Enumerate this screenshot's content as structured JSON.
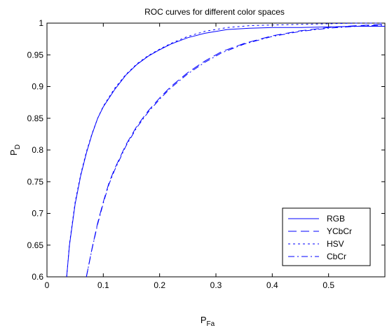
{
  "chart_data": {
    "type": "line",
    "title": "ROC curves for different color spaces",
    "xlabel": "P",
    "xlabel_sub": "Fa",
    "ylabel": "P",
    "ylabel_sub": "D",
    "xlim": [
      0,
      0.6
    ],
    "ylim": [
      0.6,
      1
    ],
    "xticks": [
      0,
      0.1,
      0.2,
      0.3,
      0.4,
      0.5
    ],
    "yticks": [
      0.6,
      0.65,
      0.7,
      0.75,
      0.8,
      0.85,
      0.9,
      0.95,
      1
    ],
    "xtick_labels": [
      "0",
      "0.1",
      "0.2",
      "0.3",
      "0.4",
      "0.5"
    ],
    "ytick_labels": [
      "0.6",
      "0.65",
      "0.7",
      "0.75",
      "0.8",
      "0.85",
      "0.9",
      "0.95",
      "1"
    ],
    "grid": false,
    "legend_position": "bottom-right",
    "line_color": "#0000ff",
    "series": [
      {
        "name": "RGB",
        "style": "solid",
        "x": [
          0.035,
          0.04,
          0.05,
          0.06,
          0.07,
          0.08,
          0.09,
          0.1,
          0.12,
          0.14,
          0.16,
          0.18,
          0.2,
          0.22,
          0.25,
          0.28,
          0.32,
          0.36,
          0.4,
          0.45,
          0.5,
          0.55,
          0.6
        ],
        "y": [
          0.6,
          0.65,
          0.715,
          0.76,
          0.795,
          0.825,
          0.85,
          0.868,
          0.895,
          0.918,
          0.935,
          0.948,
          0.958,
          0.967,
          0.977,
          0.984,
          0.99,
          0.992,
          0.993,
          0.993,
          0.994,
          0.995,
          0.995
        ]
      },
      {
        "name": "YCbCr",
        "style": "dashed",
        "x": [
          0.07,
          0.08,
          0.09,
          0.1,
          0.11,
          0.12,
          0.14,
          0.16,
          0.18,
          0.2,
          0.22,
          0.25,
          0.28,
          0.31,
          0.35,
          0.4,
          0.45,
          0.5,
          0.55,
          0.6
        ],
        "y": [
          0.6,
          0.645,
          0.685,
          0.718,
          0.748,
          0.77,
          0.808,
          0.838,
          0.862,
          0.882,
          0.9,
          0.922,
          0.94,
          0.955,
          0.968,
          0.98,
          0.988,
          0.993,
          0.996,
          0.998
        ]
      },
      {
        "name": "HSV",
        "style": "dotted",
        "x": [
          0.035,
          0.04,
          0.05,
          0.06,
          0.07,
          0.08,
          0.09,
          0.1,
          0.12,
          0.14,
          0.16,
          0.18,
          0.2,
          0.22,
          0.25,
          0.28,
          0.32,
          0.36,
          0.4,
          0.45,
          0.5,
          0.55,
          0.6
        ],
        "y": [
          0.6,
          0.652,
          0.718,
          0.762,
          0.797,
          0.826,
          0.85,
          0.869,
          0.897,
          0.919,
          0.936,
          0.949,
          0.959,
          0.968,
          0.979,
          0.987,
          0.993,
          0.996,
          0.997,
          0.998,
          0.999,
          1.0,
          1.0
        ]
      },
      {
        "name": "CbCr",
        "style": "dashdot",
        "x": [
          0.07,
          0.08,
          0.09,
          0.1,
          0.11,
          0.12,
          0.14,
          0.16,
          0.18,
          0.2,
          0.22,
          0.25,
          0.28,
          0.31,
          0.35,
          0.4,
          0.45,
          0.5,
          0.55,
          0.6
        ],
        "y": [
          0.6,
          0.644,
          0.683,
          0.716,
          0.746,
          0.768,
          0.806,
          0.836,
          0.86,
          0.88,
          0.898,
          0.92,
          0.938,
          0.953,
          0.967,
          0.979,
          0.987,
          0.992,
          0.995,
          0.997
        ]
      }
    ]
  }
}
